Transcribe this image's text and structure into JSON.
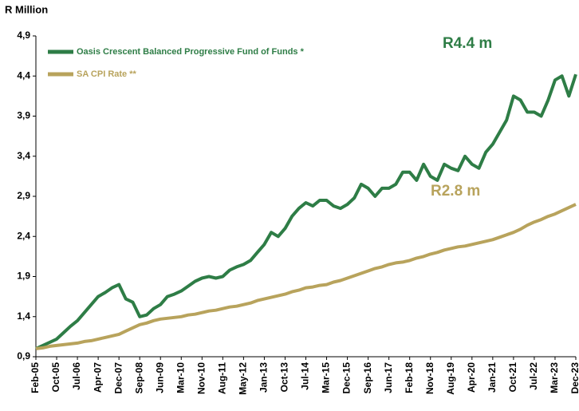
{
  "chart_data": {
    "type": "line",
    "y_label": "R Million",
    "categories": [
      "Feb-05",
      null,
      null,
      "Oct-05",
      null,
      null,
      "Jul-06",
      null,
      null,
      "Apr-07",
      null,
      null,
      "Dec-07",
      null,
      null,
      "Sep-08",
      null,
      null,
      "Jun-09",
      null,
      null,
      "Mar-10",
      null,
      null,
      "Nov-10",
      null,
      null,
      "Aug-11",
      null,
      null,
      "May-12",
      null,
      null,
      "Jan-13",
      null,
      null,
      "Oct-13",
      null,
      null,
      "Jul-14",
      null,
      null,
      "Mar-15",
      null,
      null,
      "Dec-15",
      null,
      null,
      "Sep-16",
      null,
      null,
      "Jun-17",
      null,
      null,
      "Feb-18",
      null,
      null,
      "Nov-18",
      null,
      null,
      "Aug-19",
      null,
      null,
      "Apr-20",
      null,
      null,
      "Jan-21",
      null,
      null,
      "Oct-21",
      null,
      null,
      "Jul-22",
      null,
      null,
      "Mar-23",
      null,
      null,
      "Dec-23"
    ],
    "series": [
      {
        "name": "Oasis Crescent Balanced Progressive Fund of Funds *",
        "color": "#2e7d46",
        "values": [
          1.0,
          1.04,
          1.08,
          1.12,
          1.2,
          1.28,
          1.35,
          1.45,
          1.55,
          1.65,
          1.7,
          1.76,
          1.8,
          1.62,
          1.58,
          1.4,
          1.42,
          1.5,
          1.55,
          1.65,
          1.68,
          1.72,
          1.78,
          1.84,
          1.88,
          1.9,
          1.88,
          1.9,
          1.98,
          2.02,
          2.05,
          2.1,
          2.2,
          2.3,
          2.45,
          2.4,
          2.5,
          2.65,
          2.75,
          2.82,
          2.78,
          2.85,
          2.85,
          2.78,
          2.75,
          2.8,
          2.88,
          3.05,
          3.0,
          2.9,
          3.0,
          3.0,
          3.05,
          3.2,
          3.2,
          3.1,
          3.3,
          3.15,
          3.1,
          3.3,
          3.25,
          3.22,
          3.4,
          3.3,
          3.25,
          3.45,
          3.55,
          3.7,
          3.85,
          4.15,
          4.1,
          3.95,
          3.95,
          3.9,
          4.1,
          4.35,
          4.4,
          4.15,
          4.42
        ]
      },
      {
        "name": "SA CPI Rate **",
        "color": "#b8a35c",
        "values": [
          1.0,
          1.01,
          1.03,
          1.04,
          1.05,
          1.06,
          1.07,
          1.09,
          1.1,
          1.12,
          1.14,
          1.16,
          1.18,
          1.22,
          1.26,
          1.3,
          1.32,
          1.35,
          1.37,
          1.38,
          1.39,
          1.4,
          1.42,
          1.43,
          1.45,
          1.47,
          1.48,
          1.5,
          1.52,
          1.53,
          1.55,
          1.57,
          1.6,
          1.62,
          1.64,
          1.66,
          1.68,
          1.71,
          1.73,
          1.76,
          1.77,
          1.79,
          1.8,
          1.83,
          1.85,
          1.88,
          1.91,
          1.94,
          1.97,
          2.0,
          2.02,
          2.05,
          2.07,
          2.08,
          2.1,
          2.13,
          2.15,
          2.18,
          2.2,
          2.23,
          2.25,
          2.27,
          2.28,
          2.3,
          2.32,
          2.34,
          2.36,
          2.39,
          2.42,
          2.45,
          2.49,
          2.54,
          2.58,
          2.61,
          2.65,
          2.68,
          2.72,
          2.76,
          2.8
        ]
      }
    ],
    "annotations": [
      {
        "text": "R4.4 m",
        "series": 0
      },
      {
        "text": "R2.8 m",
        "series": 1
      }
    ],
    "ylim": [
      0.9,
      4.9
    ],
    "yticks": [
      {
        "value": 0.9,
        "label": "0,9"
      },
      {
        "value": 1.4,
        "label": "1,4"
      },
      {
        "value": 1.9,
        "label": "1,9"
      },
      {
        "value": 2.4,
        "label": "2,4"
      },
      {
        "value": 2.9,
        "label": "2,9"
      },
      {
        "value": 3.4,
        "label": "3,4"
      },
      {
        "value": 3.9,
        "label": "3,9"
      },
      {
        "value": 4.4,
        "label": "4,4"
      },
      {
        "value": 4.9,
        "label": "4,9"
      }
    ],
    "legend": "upper left"
  }
}
